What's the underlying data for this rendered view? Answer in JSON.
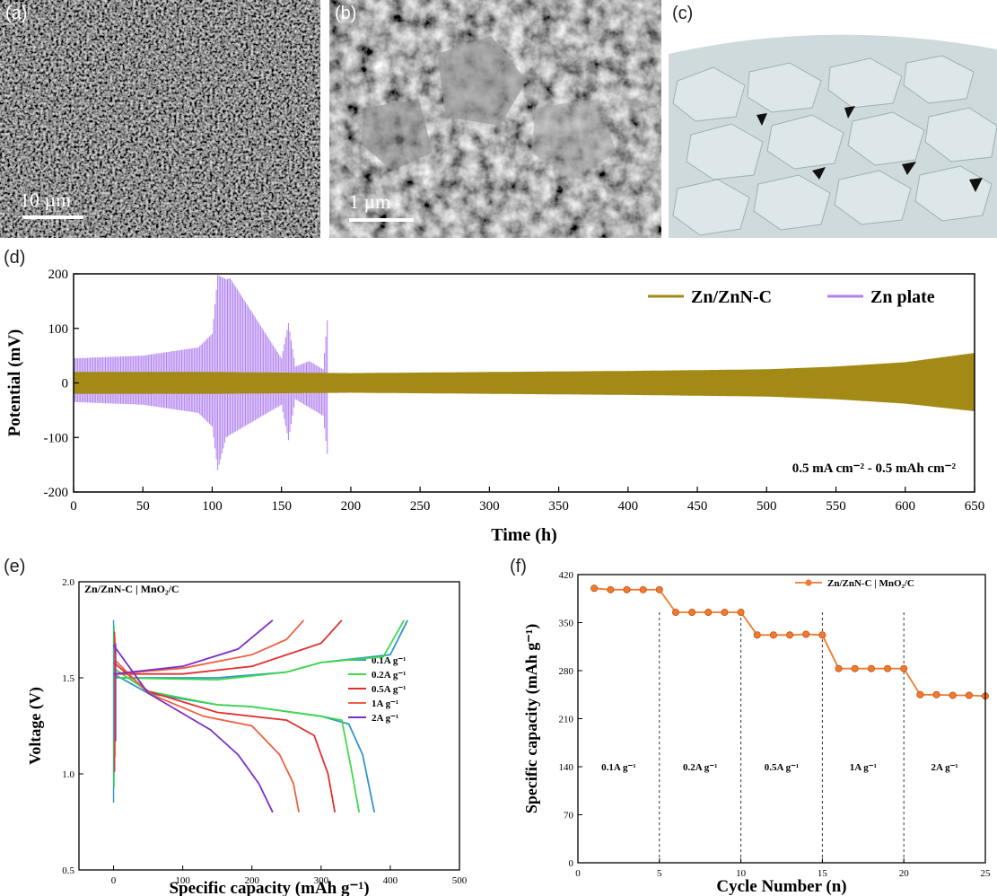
{
  "panels": {
    "a": {
      "label": "(a)",
      "scale_bar": "10 µm"
    },
    "b": {
      "label": "(b)",
      "scale_bar": "1 µm"
    },
    "c": {
      "label": "(c)"
    },
    "d": {
      "label": "(d)"
    },
    "e": {
      "label": "(e)"
    },
    "f": {
      "label": "(f)"
    }
  },
  "colors": {
    "znznc": "#a38a17",
    "znplate": "#b07ff0",
    "e_01": "#2f96c8",
    "e_02": "#3fd94a",
    "e_05": "#e03030",
    "e_1": "#f06040",
    "e_2": "#7b2fc8",
    "f_line": "#f07a30"
  },
  "chart_data": [
    {
      "id": "d",
      "type": "line",
      "xlabel": "Time (h)",
      "ylabel": "Potential (mV)",
      "xlim": [
        0,
        650
      ],
      "ylim": [
        -200,
        200
      ],
      "xticks": [
        "0",
        "50",
        "100",
        "150",
        "200",
        "250",
        "300",
        "350",
        "400",
        "450",
        "500",
        "550",
        "600",
        "650"
      ],
      "yticks": [
        "200",
        "100",
        "0",
        "-100",
        "-200"
      ],
      "annotation": "0.5 mA cm⁻² - 0.5 mAh cm⁻²",
      "series": [
        {
          "name": "Zn/ZnN-C",
          "x": [
            0,
            100,
            200,
            300,
            400,
            500,
            550,
            600,
            650
          ],
          "upper": [
            20,
            20,
            18,
            20,
            22,
            25,
            30,
            38,
            55
          ],
          "lower": [
            -20,
            -20,
            -18,
            -20,
            -22,
            -25,
            -30,
            -38,
            -52
          ]
        },
        {
          "name": "Zn plate",
          "x": [
            0,
            50,
            90,
            100,
            104,
            110,
            113,
            150,
            155,
            160,
            170,
            180,
            183
          ],
          "upper": [
            45,
            50,
            65,
            90,
            198,
            190,
            192,
            45,
            110,
            30,
            40,
            25,
            115
          ],
          "lower": [
            -35,
            -40,
            -55,
            -80,
            -160,
            -100,
            -95,
            -40,
            -105,
            -30,
            -45,
            -60,
            -130
          ]
        }
      ]
    },
    {
      "id": "e",
      "type": "line",
      "title": "Zn/ZnN-C | MnO₂/C",
      "xlabel": "Specific capacity (mAh g⁻¹)",
      "ylabel": "Voltage (V)",
      "xlim": [
        -50,
        500
      ],
      "ylim": [
        0.5,
        2.0
      ],
      "xticks": [
        "0",
        "100",
        "200",
        "300",
        "400",
        "500"
      ],
      "yticks": [
        "0.5",
        "1.0",
        "1.5",
        "2.0"
      ],
      "series": [
        {
          "name": "0.1A g⁻¹",
          "discharge": [
            [
              0,
              1.52
            ],
            [
              50,
              1.42
            ],
            [
              150,
              1.36
            ],
            [
              200,
              1.35
            ],
            [
              300,
              1.3
            ],
            [
              340,
              1.26
            ],
            [
              360,
              1.1
            ],
            [
              377,
              0.8
            ]
          ],
          "charge": [
            [
              0,
              1.5
            ],
            [
              150,
              1.5
            ],
            [
              250,
              1.53
            ],
            [
              300,
              1.58
            ],
            [
              400,
              1.62
            ],
            [
              425,
              1.8
            ]
          ]
        },
        {
          "name": "0.2A g⁻¹",
          "discharge": [
            [
              0,
              1.55
            ],
            [
              50,
              1.43
            ],
            [
              150,
              1.36
            ],
            [
              200,
              1.35
            ],
            [
              300,
              1.3
            ],
            [
              330,
              1.28
            ],
            [
              345,
              1.0
            ],
            [
              355,
              0.8
            ]
          ],
          "charge": [
            [
              0,
              1.5
            ],
            [
              150,
              1.49
            ],
            [
              250,
              1.53
            ],
            [
              300,
              1.58
            ],
            [
              390,
              1.61
            ],
            [
              420,
              1.8
            ]
          ]
        },
        {
          "name": "0.5A g⁻¹",
          "discharge": [
            [
              0,
              1.58
            ],
            [
              50,
              1.43
            ],
            [
              150,
              1.32
            ],
            [
              250,
              1.28
            ],
            [
              290,
              1.2
            ],
            [
              310,
              1.0
            ],
            [
              320,
              0.8
            ]
          ],
          "charge": [
            [
              0,
              1.52
            ],
            [
              100,
              1.52
            ],
            [
              200,
              1.56
            ],
            [
              300,
              1.68
            ],
            [
              330,
              1.8
            ]
          ]
        },
        {
          "name": "1A g⁻¹",
          "discharge": [
            [
              0,
              1.6
            ],
            [
              50,
              1.42
            ],
            [
              130,
              1.3
            ],
            [
              200,
              1.25
            ],
            [
              240,
              1.1
            ],
            [
              260,
              0.95
            ],
            [
              268,
              0.8
            ]
          ],
          "charge": [
            [
              0,
              1.52
            ],
            [
              100,
              1.55
            ],
            [
              200,
              1.62
            ],
            [
              250,
              1.7
            ],
            [
              275,
              1.8
            ]
          ]
        },
        {
          "name": "2A g⁻¹",
          "discharge": [
            [
              0,
              1.67
            ],
            [
              50,
              1.42
            ],
            [
              140,
              1.23
            ],
            [
              180,
              1.1
            ],
            [
              210,
              0.95
            ],
            [
              230,
              0.8
            ]
          ],
          "charge": [
            [
              0,
              1.52
            ],
            [
              100,
              1.56
            ],
            [
              180,
              1.65
            ],
            [
              230,
              1.8
            ]
          ]
        }
      ]
    },
    {
      "id": "f",
      "type": "line",
      "xlabel": "Cycle Number (n)",
      "ylabel": "Specific capacity (mAh g⁻¹)",
      "xlim": [
        0,
        25
      ],
      "ylim": [
        0,
        420
      ],
      "xticks": [
        "0",
        "5",
        "10",
        "15",
        "20",
        "25"
      ],
      "yticks": [
        "0",
        "70",
        "140",
        "210",
        "280",
        "350",
        "420"
      ],
      "legend": "Zn/ZnN-C | MnO₂/C",
      "dividers": [
        5,
        10,
        15,
        20
      ],
      "segment_labels": [
        "0.1A g⁻¹",
        "0.2A g⁻¹",
        "0.5A g⁻¹",
        "1A g⁻¹",
        "2A g⁻¹"
      ],
      "x": [
        1,
        2,
        3,
        4,
        5,
        6,
        7,
        8,
        9,
        10,
        11,
        12,
        13,
        14,
        15,
        16,
        17,
        18,
        19,
        20,
        21,
        22,
        23,
        24,
        25
      ],
      "values": [
        400,
        398,
        398,
        398,
        398,
        365,
        365,
        365,
        365,
        365,
        332,
        332,
        332,
        333,
        332,
        283,
        283,
        283,
        283,
        283,
        245,
        245,
        244,
        244,
        243
      ]
    }
  ]
}
